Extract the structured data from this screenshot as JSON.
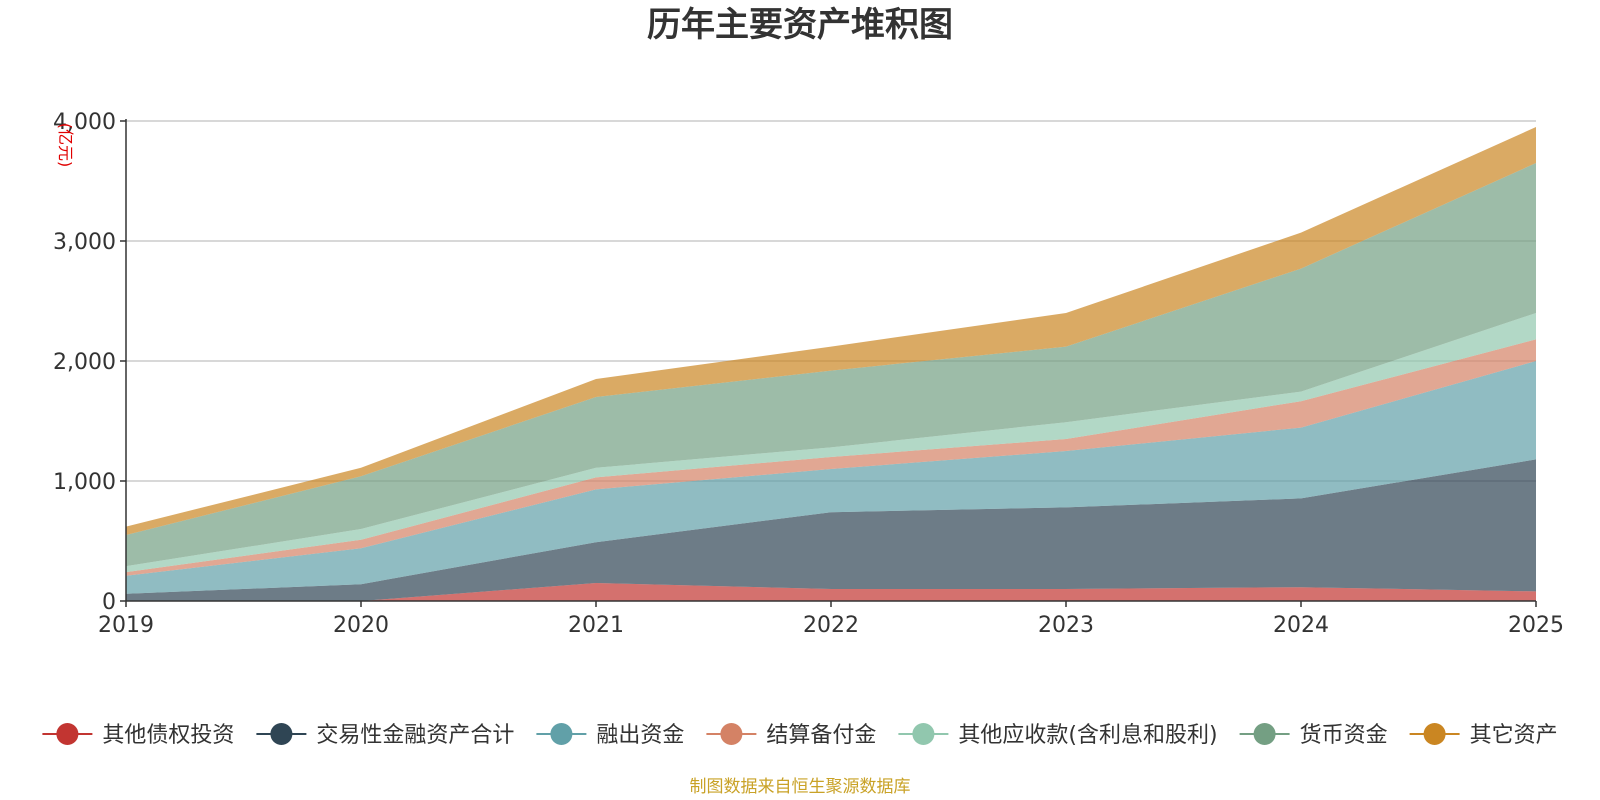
{
  "chart_data": {
    "type": "area",
    "stacked": true,
    "title": "历年主要资产堆积图",
    "unit": "(亿元)",
    "source": "制图数据来自恒生聚源数据库",
    "x": [
      "2019",
      "2020",
      "2021",
      "2022",
      "2023",
      "2024",
      "2025"
    ],
    "ylim": [
      0,
      4000
    ],
    "yticks": [
      0,
      1000,
      2000,
      3000,
      4000
    ],
    "ytick_labels": [
      "0",
      "1,000",
      "2,000",
      "3,000",
      "4,000"
    ],
    "grid": true,
    "legend_position": "bottom",
    "series": [
      {
        "name": "其他债权投资",
        "color": "#c23531",
        "values": [
          0,
          0,
          150,
          100,
          100,
          115,
          80
        ]
      },
      {
        "name": "交易性金融资产合计",
        "color": "#2f4554",
        "values": [
          60,
          140,
          340,
          640,
          680,
          740,
          1100
        ]
      },
      {
        "name": "融出资金",
        "color": "#61a0a8",
        "values": [
          150,
          300,
          440,
          360,
          470,
          590,
          820
        ]
      },
      {
        "name": "结算备付金",
        "color": "#d48265",
        "values": [
          30,
          70,
          100,
          100,
          100,
          220,
          180
        ]
      },
      {
        "name": "其他应收款(含利息和股利)",
        "color": "#91c7ae",
        "values": [
          50,
          90,
          80,
          80,
          140,
          80,
          220
        ]
      },
      {
        "name": "货币资金",
        "color": "#749f83",
        "values": [
          260,
          440,
          590,
          640,
          630,
          1025,
          1250
        ]
      },
      {
        "name": "其它资产",
        "color": "#ca8622",
        "values": [
          70,
          70,
          150,
          200,
          280,
          300,
          300
        ]
      }
    ]
  }
}
